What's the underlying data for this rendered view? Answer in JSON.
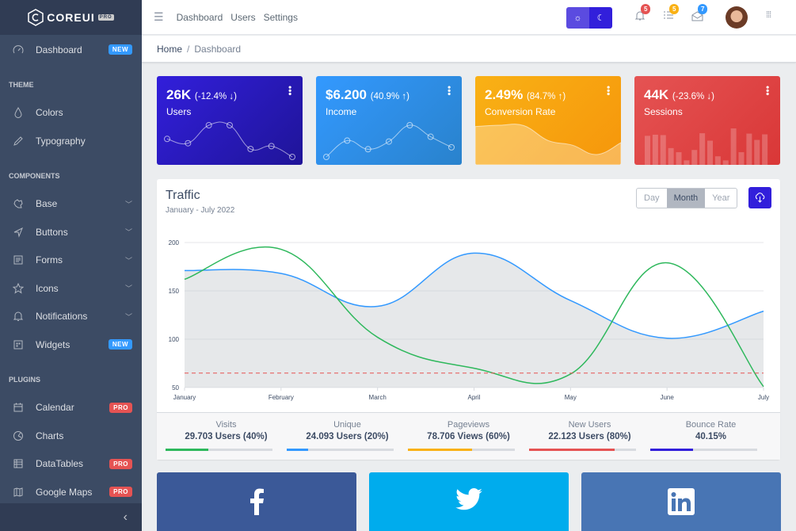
{
  "brand": {
    "name": "COREUI",
    "tag": "PRO"
  },
  "sidebar": {
    "dashboard": {
      "label": "Dashboard",
      "badge": "NEW"
    },
    "sections": [
      {
        "title": "THEME",
        "items": [
          {
            "label": "Colors",
            "icon": "drop-icon"
          },
          {
            "label": "Typography",
            "icon": "pencil-icon"
          }
        ]
      },
      {
        "title": "COMPONENTS",
        "items": [
          {
            "label": "Base",
            "icon": "puzzle-icon",
            "chevron": true
          },
          {
            "label": "Buttons",
            "icon": "cursor-icon",
            "chevron": true
          },
          {
            "label": "Forms",
            "icon": "notes-icon",
            "chevron": true
          },
          {
            "label": "Icons",
            "icon": "star-icon",
            "chevron": true
          },
          {
            "label": "Notifications",
            "icon": "bell-icon",
            "chevron": true
          },
          {
            "label": "Widgets",
            "icon": "calculator-icon",
            "badge": "NEW"
          }
        ]
      },
      {
        "title": "PLUGINS",
        "items": [
          {
            "label": "Calendar",
            "icon": "calendar-icon",
            "badge": "PRO"
          },
          {
            "label": "Charts",
            "icon": "chart-pie-icon"
          },
          {
            "label": "DataTables",
            "icon": "spreadsheet-icon",
            "badge": "PRO"
          },
          {
            "label": "Google Maps",
            "icon": "map-icon",
            "badge": "PRO"
          }
        ]
      }
    ]
  },
  "header": {
    "links": [
      "Dashboard",
      "Users",
      "Settings"
    ],
    "notifications": "5",
    "tasks": "5",
    "messages": "7"
  },
  "breadcrumb": {
    "home": "Home",
    "current": "Dashboard"
  },
  "widgets": [
    {
      "value": "26K",
      "change": "(-12.4% ↓)",
      "label": "Users",
      "color": "#321fdb",
      "chart": {
        "type": "line",
        "values": [
          65,
          59,
          84,
          84,
          51,
          55,
          40
        ]
      }
    },
    {
      "value": "$6.200",
      "change": "(40.9% ↑)",
      "label": "Income",
      "color": "#3399ff",
      "chart": {
        "type": "line",
        "values": [
          1,
          18,
          9,
          17,
          34,
          22,
          11
        ]
      }
    },
    {
      "value": "2.49%",
      "change": "(84.7% ↑)",
      "label": "Conversion Rate",
      "color": "#f9b115",
      "chart": {
        "type": "area",
        "values": [
          78,
          81,
          80,
          45,
          34,
          12,
          40
        ]
      }
    },
    {
      "value": "44K",
      "change": "(-23.6% ↓)",
      "label": "Sessions",
      "color": "#e55353",
      "chart": {
        "type": "bar",
        "values": [
          78,
          81,
          80,
          45,
          34,
          12,
          40,
          85,
          65,
          23,
          12,
          98,
          34,
          84,
          67,
          82
        ]
      }
    }
  ],
  "traffic": {
    "title": "Traffic",
    "subtitle": "January - July 2022",
    "periods": [
      "Day",
      "Month",
      "Year"
    ],
    "active_period": "Month",
    "stats": [
      {
        "title": "Visits",
        "value": "29.703 Users (40%)",
        "percent": 40,
        "color": "#2eb85c"
      },
      {
        "title": "Unique",
        "value": "24.093 Users (20%)",
        "percent": 20,
        "color": "#3399ff"
      },
      {
        "title": "Pageviews",
        "value": "78.706 Views (60%)",
        "percent": 60,
        "color": "#f9b115"
      },
      {
        "title": "New Users",
        "value": "22.123 Users (80%)",
        "percent": 80,
        "color": "#e55353"
      },
      {
        "title": "Bounce Rate",
        "value": "40.15%",
        "percent": 40,
        "color": "#321fdb"
      }
    ]
  },
  "chart_data": {
    "type": "line",
    "categories": [
      "January",
      "February",
      "March",
      "April",
      "May",
      "June",
      "July"
    ],
    "yticks": [
      "50",
      "100",
      "150",
      "200"
    ],
    "ylim": [
      50,
      200
    ],
    "grid": true,
    "series": [
      {
        "values": [
          171,
          168,
          134,
          189,
          140,
          101,
          129
        ],
        "color": "#3399ff",
        "fill": true
      },
      {
        "values": [
          162,
          193,
          102,
          70,
          64,
          179,
          51
        ],
        "color": "#2eb85c"
      },
      {
        "values": [
          65,
          65,
          65,
          65,
          65,
          65,
          65
        ],
        "color": "#e55353",
        "dashed": true
      }
    ]
  },
  "social": [
    {
      "icon": "facebook-icon",
      "color": "#3b5998"
    },
    {
      "icon": "twitter-icon",
      "color": "#00aced"
    },
    {
      "icon": "linkedin-icon",
      "color": "#4875b4"
    }
  ]
}
